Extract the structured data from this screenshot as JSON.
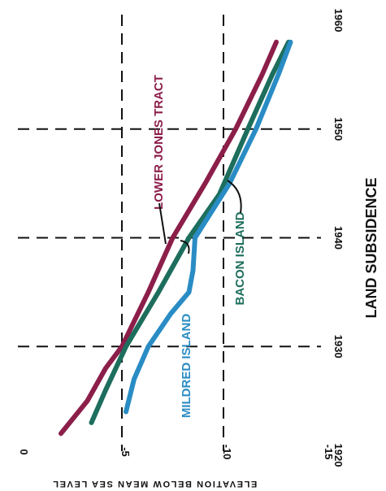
{
  "chart_data": {
    "type": "line",
    "title": "LAND SUBSIDENCE",
    "xlabel": "",
    "ylabel": "ELEVATION BELOW MEAN SEA LEVEL",
    "x_ticks": [
      "1920",
      "1930",
      "1940",
      "1950",
      "1960"
    ],
    "y_ticks": [
      "0",
      "-5",
      "-10",
      "-15"
    ],
    "xlim": [
      1920,
      1960
    ],
    "ylim": [
      0,
      -15
    ],
    "grid": true,
    "series": [
      {
        "name": "LOWER JONES TRACT",
        "color": "#8c1e4a",
        "points": [
          [
            1922,
            -2.0
          ],
          [
            1925,
            -3.3
          ],
          [
            1928,
            -4.2
          ],
          [
            1930,
            -5.0
          ],
          [
            1935,
            -6.3
          ],
          [
            1940,
            -7.5
          ],
          [
            1945,
            -9.1
          ],
          [
            1950,
            -10.6
          ],
          [
            1955,
            -11.9
          ],
          [
            1958,
            -12.6
          ]
        ]
      },
      {
        "name": "BACON ISLAND",
        "color": "#1d6e5c",
        "points": [
          [
            1923,
            -3.5
          ],
          [
            1926,
            -4.2
          ],
          [
            1930,
            -5.2
          ],
          [
            1935,
            -6.8
          ],
          [
            1940,
            -8.3
          ],
          [
            1944,
            -9.8
          ],
          [
            1950,
            -11.2
          ],
          [
            1955,
            -12.4
          ],
          [
            1958,
            -13.2
          ]
        ]
      },
      {
        "name": "MILDRED ISLAND",
        "color": "#2a8cc4",
        "points": [
          [
            1924,
            -5.2
          ],
          [
            1927,
            -5.6
          ],
          [
            1930,
            -6.3
          ],
          [
            1933,
            -7.4
          ],
          [
            1935,
            -8.3
          ],
          [
            1937,
            -8.5
          ],
          [
            1940,
            -8.6
          ],
          [
            1945,
            -10.3
          ],
          [
            1950,
            -11.6
          ],
          [
            1955,
            -12.7
          ],
          [
            1958,
            -13.3
          ]
        ]
      }
    ]
  }
}
